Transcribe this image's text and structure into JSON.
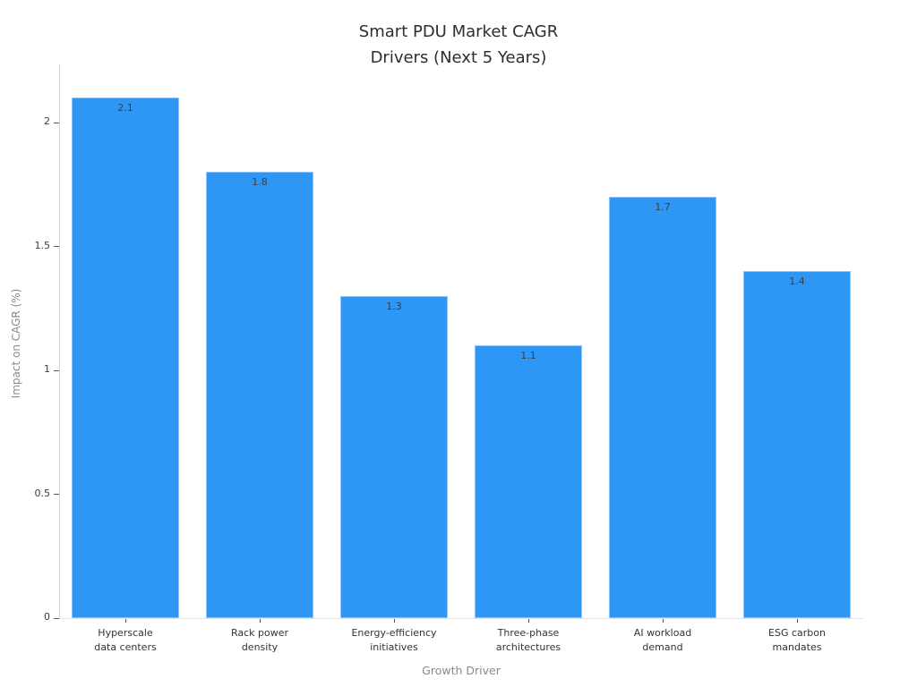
{
  "chart_data": {
    "type": "bar",
    "title": "Smart PDU Market CAGR\nDrivers (Next 5 Years)",
    "xlabel": "Growth Driver",
    "ylabel": "Impact on CAGR (%)",
    "categories": [
      "Hyperscale\ndata centers",
      "Rack power\ndensity",
      "Energy-efficiency\ninitiatives",
      "Three-phase\narchitectures",
      "AI workload\ndemand",
      "ESG carbon\nmandates"
    ],
    "values": [
      2.1,
      1.8,
      1.3,
      1.1,
      1.7,
      1.4
    ],
    "value_labels": [
      "2.1",
      "1.8",
      "1.3",
      "1.1",
      "1.7",
      "1.4"
    ],
    "yticks": [
      0,
      0.5,
      1,
      1.5,
      2
    ],
    "ytick_labels": [
      "0",
      "0.5",
      "1",
      "1.5",
      "2"
    ],
    "ylim": [
      0,
      2.235
    ],
    "grid": false,
    "legend": null,
    "bar_color": "#2E96F5",
    "colors": {
      "title_text": "#2d2d2d",
      "tick_text": "#3c3c3c",
      "category_text": "#333333",
      "value_text": "#3e3e3e",
      "axis_title_text": "#8a8a8a",
      "spine": "#d8d8d8",
      "baseline": "#e4e4e4",
      "tick_mark": "#555555",
      "background": "#ffffff"
    }
  }
}
